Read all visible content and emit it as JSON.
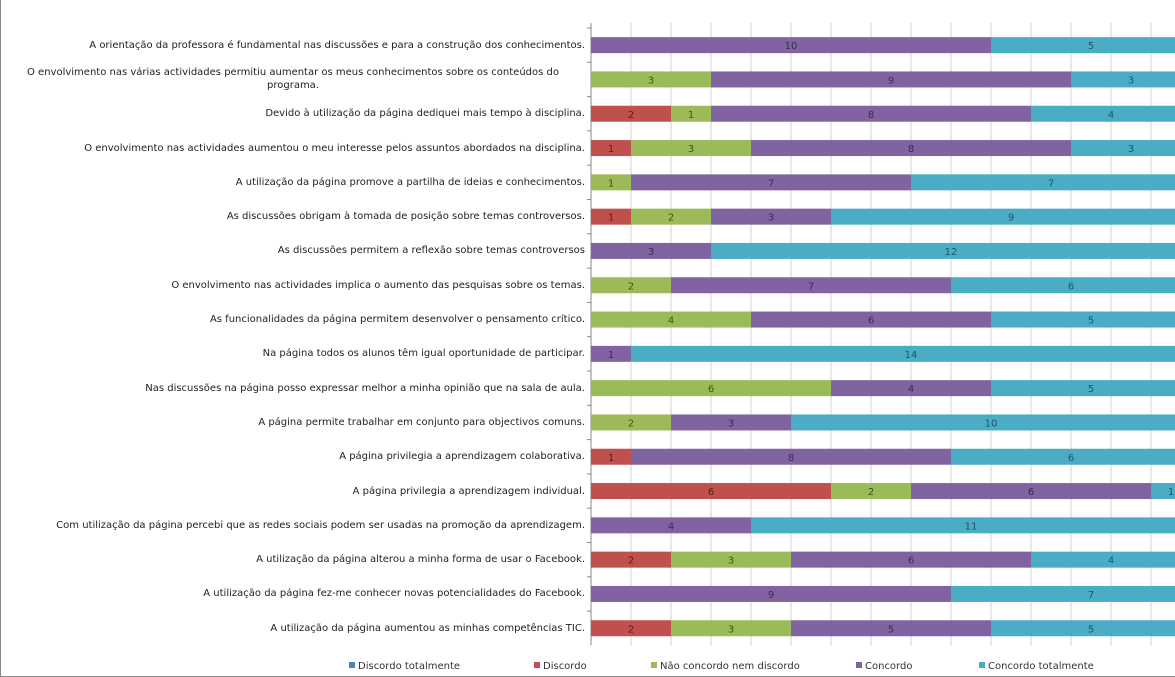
{
  "chart_data": {
    "type": "stacked-barh",
    "categories": [
      "A orientação da professora é fundamental nas discussões e para a construção dos conhecimentos.",
      "O envolvimento nas várias actividades permitiu aumentar os meus conhecimentos sobre os conteúdos do programa.",
      "Devido à utilização da página dediquei mais tempo à disciplina.",
      "O envolvimento nas actividades aumentou o meu interesse pelos assuntos abordados na disciplina.",
      "A utilização da página promove a partilha de ideias e conhecimentos.",
      "As discussões obrigam à tomada de posição sobre temas controversos.",
      "As discussões permitem a reflexão sobre temas controversos",
      "O envolvimento nas actividades implica o aumento das pesquisas sobre os temas.",
      "As funcionalidades da página permitem desenvolver o pensamento crítico.",
      "Na página todos os alunos têm igual oportunidade de participar.",
      "Nas discussões na página posso expressar melhor a minha opinião que na sala de aula.",
      "A página permite trabalhar em conjunto para objectivos comuns.",
      "A página privilegia a aprendizagem colaborativa.",
      "A página privilegia a aprendizagem individual.",
      "Com utilização da página percebi que as redes sociais podem ser usadas na promoção da aprendizagem.",
      "A utilização da página alterou a minha forma de usar o Facebook.",
      "A utilização da página fez-me conhecer novas potencialidades do Facebook.",
      "A utilização da página aumentou as minhas competências TIC."
    ],
    "series": [
      {
        "name": "Discordo totalmente",
        "color": "#4f81bd",
        "values": [
          null,
          null,
          null,
          null,
          null,
          null,
          null,
          null,
          null,
          null,
          null,
          null,
          null,
          null,
          null,
          null,
          null,
          null
        ]
      },
      {
        "name": "Discordo",
        "color": "#c0504d",
        "values": [
          null,
          null,
          2,
          1,
          null,
          1,
          null,
          null,
          null,
          null,
          null,
          null,
          1,
          6,
          null,
          2,
          null,
          2
        ]
      },
      {
        "name": "Não concordo nem discordo",
        "color": "#9bbb59",
        "values": [
          null,
          3,
          1,
          3,
          1,
          2,
          null,
          2,
          4,
          null,
          6,
          2,
          null,
          2,
          null,
          3,
          null,
          3
        ]
      },
      {
        "name": "Concordo",
        "color": "#8064a2",
        "values": [
          10,
          9,
          8,
          8,
          7,
          3,
          3,
          7,
          6,
          1,
          4,
          3,
          8,
          6,
          4,
          6,
          9,
          5
        ]
      },
      {
        "name": "Concordo totalmente",
        "color": "#4bacc6",
        "values": [
          5,
          3,
          4,
          3,
          7,
          9,
          12,
          6,
          5,
          14,
          5,
          10,
          6,
          1,
          11,
          4,
          7,
          5
        ]
      }
    ],
    "xlim": [
      0,
      15
    ],
    "grid": true,
    "legend": "bottom"
  }
}
